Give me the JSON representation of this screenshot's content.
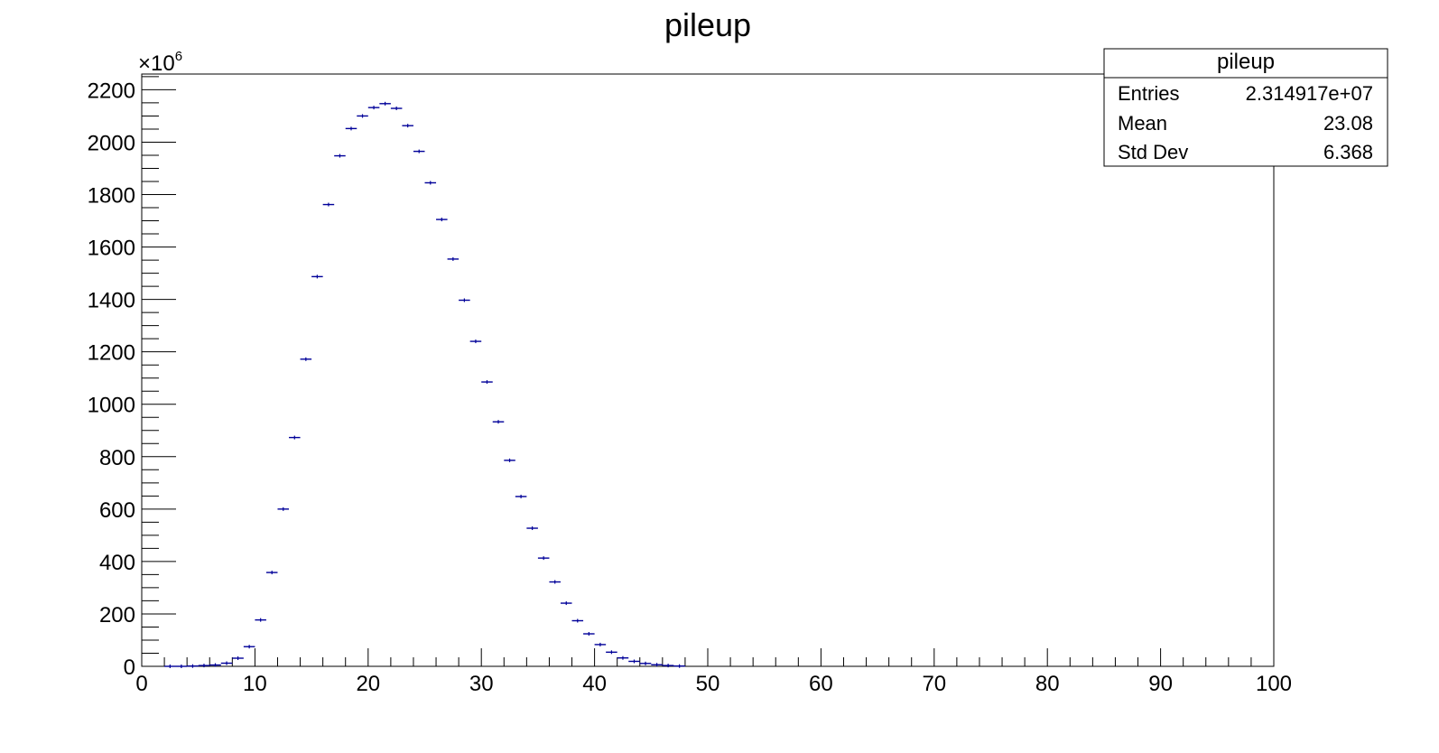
{
  "chart_data": {
    "type": "histogram",
    "title": "pileup",
    "xlabel": "",
    "ylabel": "",
    "y_multiplier_label": "×10",
    "y_multiplier_exponent": "6",
    "xlim": [
      0,
      100
    ],
    "ylim": [
      0,
      2260
    ],
    "x_ticks": [
      0,
      10,
      20,
      30,
      40,
      50,
      60,
      70,
      80,
      90,
      100
    ],
    "y_ticks": [
      0,
      200,
      400,
      600,
      800,
      1000,
      1200,
      1400,
      1600,
      1800,
      2000,
      2200
    ],
    "grid": false,
    "series_color": "#000099",
    "bin_width": 1,
    "bin_low_edges": [
      2,
      3,
      4,
      5,
      6,
      7,
      8,
      9,
      10,
      11,
      12,
      13,
      14,
      15,
      16,
      17,
      18,
      19,
      20,
      21,
      22,
      23,
      24,
      25,
      26,
      27,
      28,
      29,
      30,
      31,
      32,
      33,
      34,
      35,
      36,
      37,
      38,
      39,
      40,
      41,
      42,
      43,
      44,
      45,
      46,
      47
    ],
    "values": [
      0,
      0,
      1,
      3,
      5,
      12,
      31,
      75,
      177,
      358,
      600,
      873,
      1172,
      1487,
      1762,
      1948,
      2052,
      2100,
      2132,
      2147,
      2129,
      2063,
      1965,
      1845,
      1705,
      1554,
      1397,
      1240,
      1085,
      933,
      786,
      648,
      527,
      413,
      322,
      241,
      174,
      124,
      83,
      54,
      32,
      19,
      11,
      6,
      3,
      1
    ],
    "stats_box": {
      "title": "pileup",
      "rows": [
        {
          "label": "Entries",
          "value": "2.314917e+07"
        },
        {
          "label": "Mean",
          "value": "23.08"
        },
        {
          "label": "Std Dev",
          "value": "6.368"
        }
      ]
    }
  }
}
